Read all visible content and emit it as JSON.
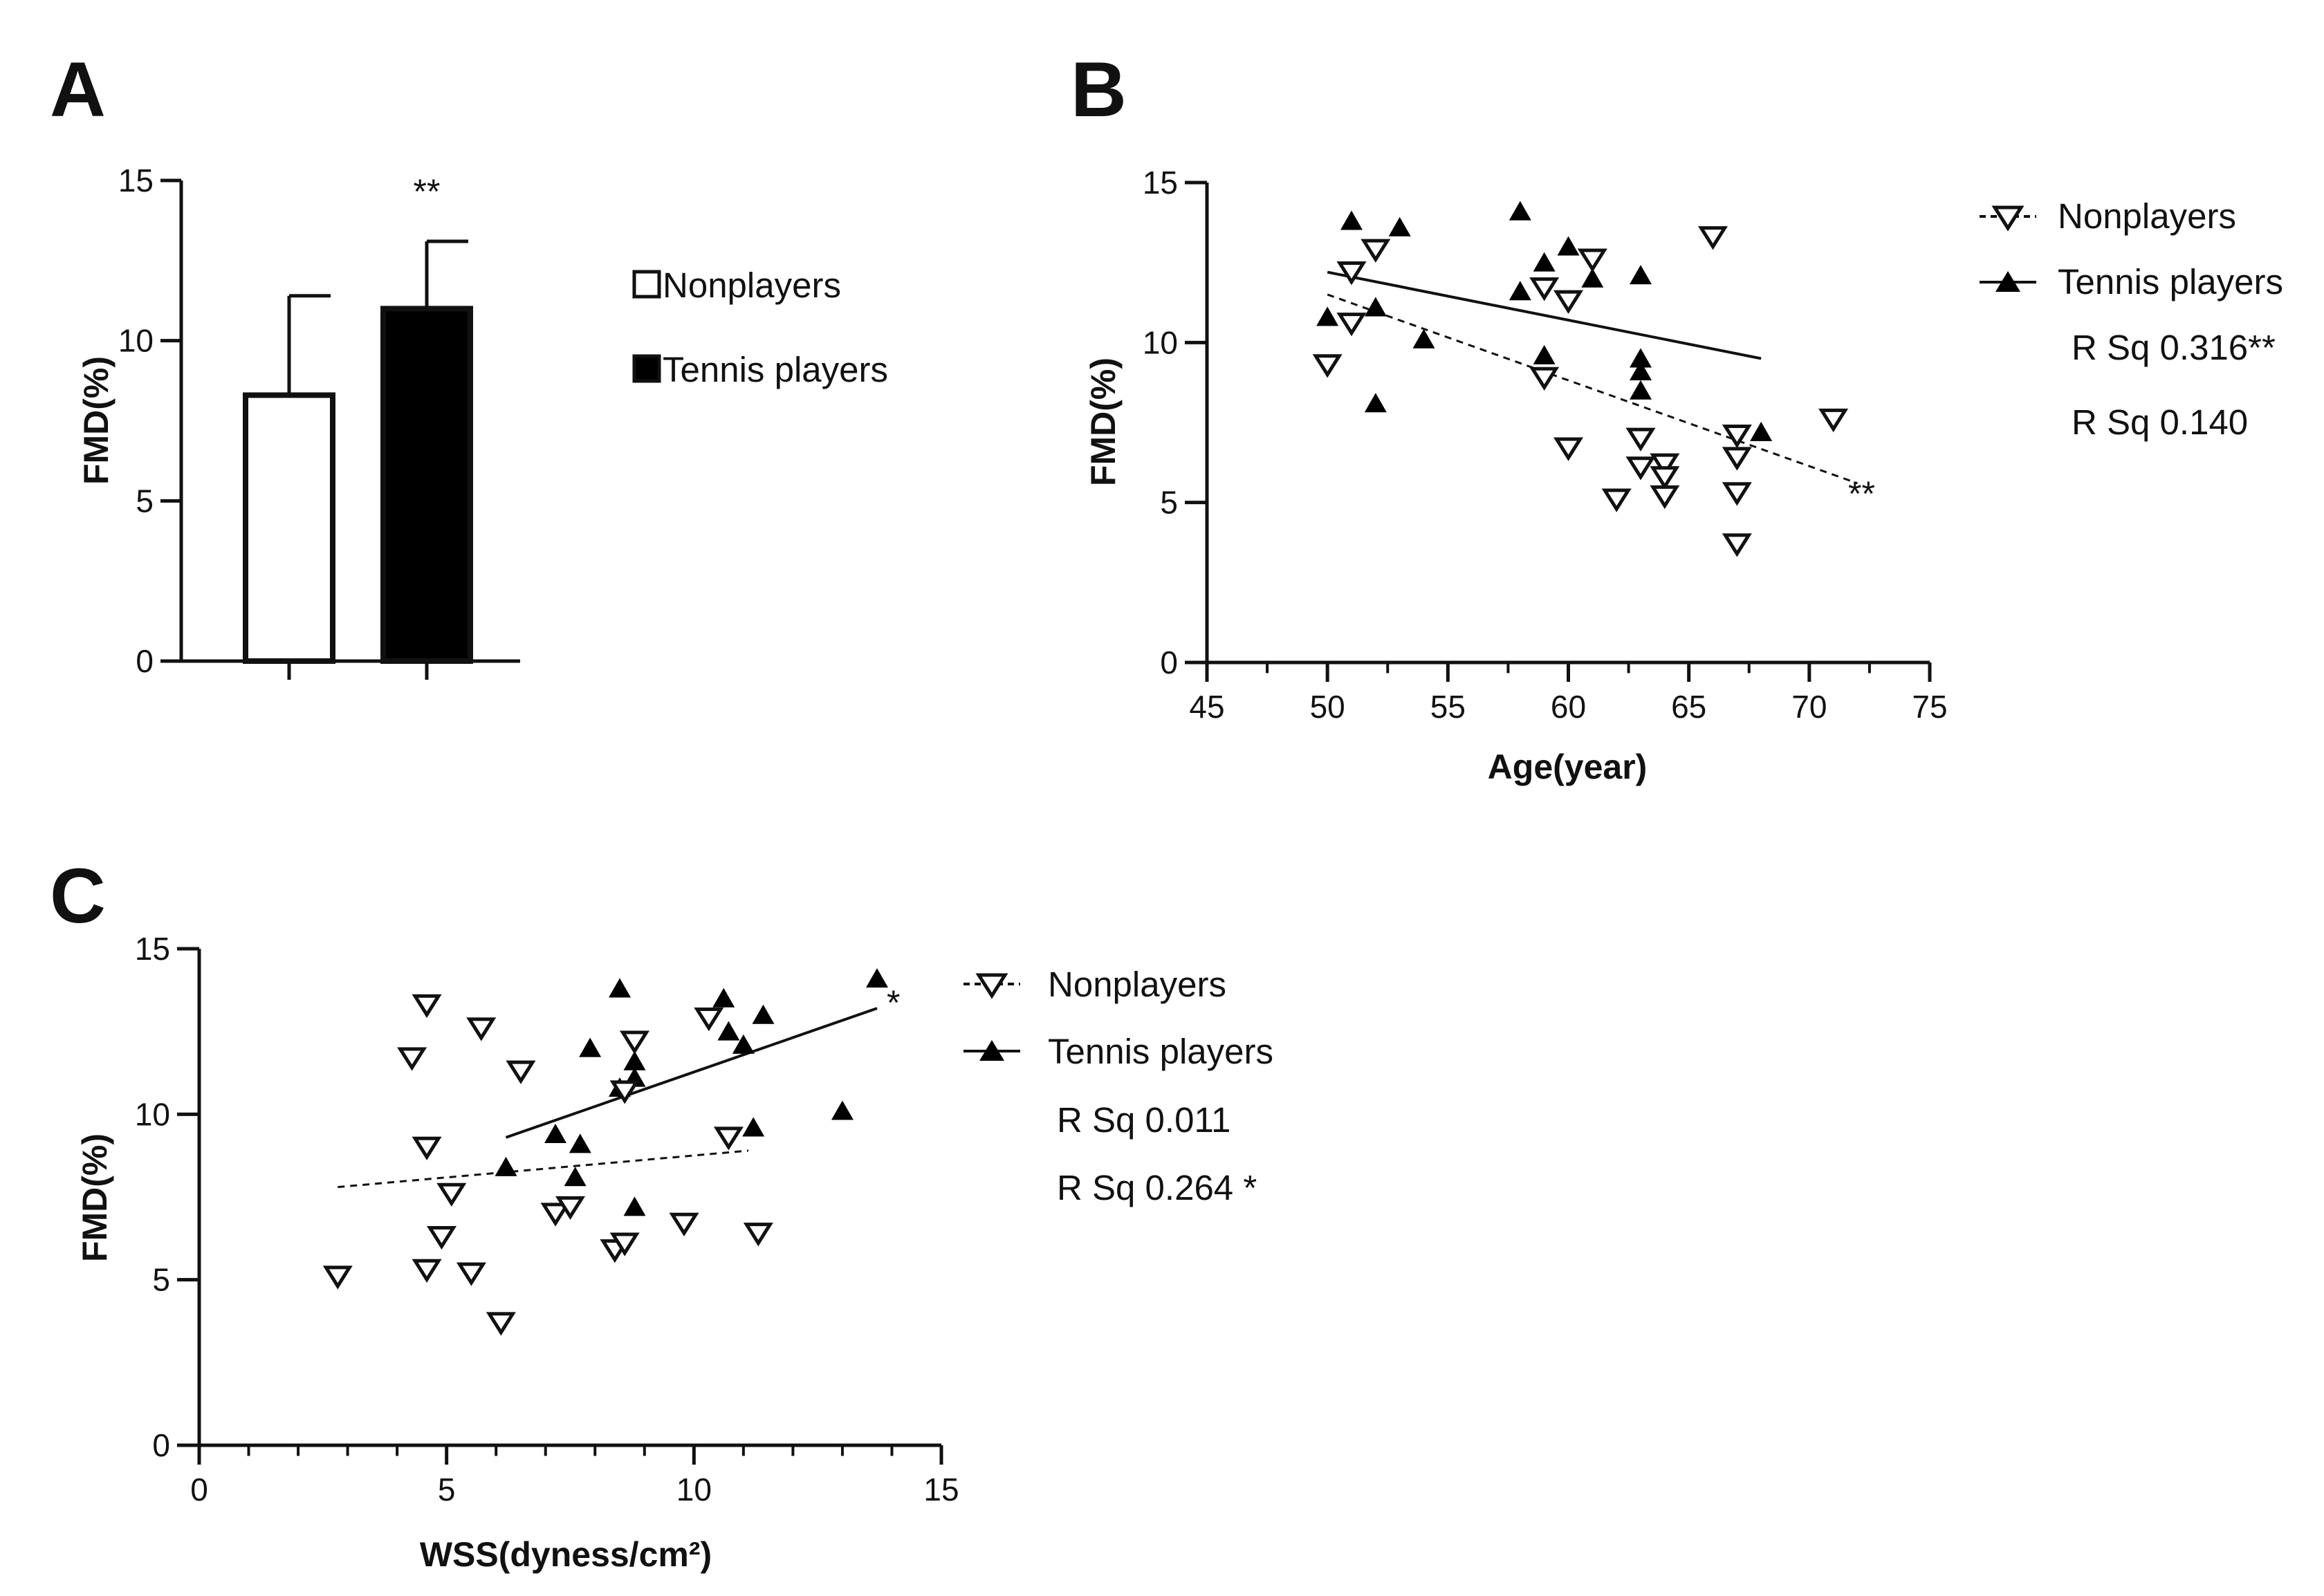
{
  "colors": {
    "ink": "#111111",
    "background": "#ffffff",
    "tennis_fill": "#000000",
    "nonplayer_fill": "#ffffff"
  },
  "icons": {
    "nonplayer_marker": "down-triangle-open-icon",
    "tennis_marker": "up-triangle-filled-icon"
  },
  "chart_data": [
    {
      "panel": "A",
      "type": "bar",
      "xlabel": "",
      "ylabel": "FMD(%)",
      "ylim": [
        0,
        15
      ],
      "yticks": [
        0,
        5,
        10,
        15
      ],
      "categories": [
        "Nonplayers",
        "Tennis players"
      ],
      "values": [
        8.3,
        11.0
      ],
      "error_upper": [
        11.4,
        13.1
      ],
      "fills": [
        "#ffffff",
        "#000000"
      ],
      "significance": [
        "",
        "**"
      ],
      "legend": [
        "Nonplayers",
        "Tennis players"
      ],
      "legend_position": "right"
    },
    {
      "panel": "B",
      "type": "scatter",
      "xlabel": "Age(year)",
      "ylabel": "FMD(%)",
      "xlim": [
        45,
        75
      ],
      "ylim": [
        0,
        15
      ],
      "xticks": [
        45,
        50,
        55,
        60,
        65,
        70,
        75
      ],
      "yticks": [
        0,
        5,
        10,
        15
      ],
      "legend_position": "top-right",
      "significance_mark": "**",
      "series": [
        {
          "name": "Nonplayers",
          "marker": "triangle-down-open",
          "line": "dashed",
          "r_sq_label": "R Sq 0.316**",
          "fit": {
            "x": [
              50,
              72
            ],
            "y": [
              11.5,
              5.6
            ]
          },
          "points": [
            [
              50,
              9.3
            ],
            [
              51,
              10.6
            ],
            [
              51,
              12.2
            ],
            [
              52,
              12.9
            ],
            [
              59,
              11.7
            ],
            [
              59,
              8.9
            ],
            [
              60,
              11.3
            ],
            [
              60,
              6.7
            ],
            [
              61,
              12.6
            ],
            [
              62,
              5.1
            ],
            [
              63,
              7.0
            ],
            [
              63,
              6.1
            ],
            [
              64,
              6.2
            ],
            [
              64,
              5.8
            ],
            [
              64,
              5.2
            ],
            [
              66,
              13.3
            ],
            [
              67,
              7.1
            ],
            [
              67,
              6.4
            ],
            [
              67,
              5.3
            ],
            [
              67,
              3.7
            ],
            [
              71,
              7.6
            ]
          ]
        },
        {
          "name": "Tennis players",
          "marker": "triangle-up-filled",
          "line": "solid",
          "r_sq_label": "R Sq 0.140",
          "fit": {
            "x": [
              50,
              68
            ],
            "y": [
              12.2,
              9.5
            ]
          },
          "points": [
            [
              50,
              10.8
            ],
            [
              51,
              13.8
            ],
            [
              52,
              11.1
            ],
            [
              52,
              8.1
            ],
            [
              53,
              13.6
            ],
            [
              54,
              10.1
            ],
            [
              58,
              14.1
            ],
            [
              58,
              11.6
            ],
            [
              59,
              12.5
            ],
            [
              59,
              9.6
            ],
            [
              60,
              13.0
            ],
            [
              61,
              12.0
            ],
            [
              63,
              12.1
            ],
            [
              63,
              9.5
            ],
            [
              63,
              9.1
            ],
            [
              63,
              8.5
            ],
            [
              68,
              7.2
            ]
          ]
        }
      ]
    },
    {
      "panel": "C",
      "type": "scatter",
      "xlabel": "WSS(dyness/cm²)",
      "ylabel": "FMD(%)",
      "xlim": [
        0,
        15
      ],
      "ylim": [
        0,
        15
      ],
      "xticks": [
        0,
        5,
        10,
        15
      ],
      "yticks": [
        0,
        5,
        10,
        15
      ],
      "legend_position": "right",
      "significance_mark": "*",
      "series": [
        {
          "name": "Nonplayers",
          "marker": "triangle-down-open",
          "line": "dashed",
          "r_sq_label": "R Sq 0.011",
          "fit": {
            "x": [
              2.8,
              11.1
            ],
            "y": [
              7.8,
              8.9
            ]
          },
          "points": [
            [
              2.8,
              5.1
            ],
            [
              4.3,
              11.7
            ],
            [
              4.6,
              13.3
            ],
            [
              4.6,
              9.0
            ],
            [
              4.6,
              5.3
            ],
            [
              4.9,
              6.3
            ],
            [
              5.1,
              7.6
            ],
            [
              5.5,
              5.2
            ],
            [
              5.7,
              12.6
            ],
            [
              6.1,
              3.7
            ],
            [
              6.5,
              11.3
            ],
            [
              7.2,
              7.0
            ],
            [
              7.5,
              7.2
            ],
            [
              8.4,
              5.9
            ],
            [
              8.6,
              6.1
            ],
            [
              8.6,
              10.7
            ],
            [
              8.8,
              12.2
            ],
            [
              9.8,
              6.7
            ],
            [
              10.3,
              12.9
            ],
            [
              10.7,
              9.3
            ],
            [
              11.3,
              6.4
            ]
          ]
        },
        {
          "name": "Tennis players",
          "marker": "triangle-up-filled",
          "line": "solid",
          "r_sq_label": "R Sq 0.264 *",
          "fit": {
            "x": [
              6.2,
              13.7
            ],
            "y": [
              9.3,
              13.2
            ]
          },
          "points": [
            [
              6.2,
              8.4
            ],
            [
              7.2,
              9.4
            ],
            [
              7.6,
              8.1
            ],
            [
              7.7,
              9.1
            ],
            [
              7.9,
              12.0
            ],
            [
              8.5,
              13.8
            ],
            [
              8.5,
              10.8
            ],
            [
              8.8,
              11.6
            ],
            [
              8.8,
              11.1
            ],
            [
              8.8,
              7.2
            ],
            [
              10.6,
              13.5
            ],
            [
              10.7,
              12.5
            ],
            [
              11.0,
              12.1
            ],
            [
              11.2,
              9.6
            ],
            [
              11.4,
              13.0
            ],
            [
              13.0,
              10.1
            ],
            [
              13.7,
              14.1
            ]
          ]
        }
      ]
    }
  ]
}
